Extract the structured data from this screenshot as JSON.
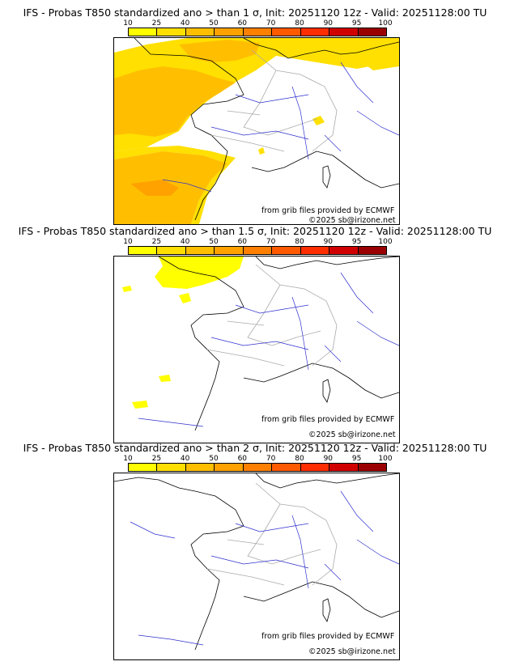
{
  "colorbar": {
    "ticks": [
      "10",
      "25",
      "40",
      "50",
      "60",
      "70",
      "80",
      "90",
      "95",
      "100"
    ],
    "colors": [
      "#ffff00",
      "#ffdf00",
      "#ffbf00",
      "#ffa200",
      "#ff8000",
      "#ff5a00",
      "#ff2d00",
      "#d00000",
      "#9a0000",
      "#5a0000"
    ]
  },
  "panels": [
    {
      "title": "IFS - Probas T850  standardized ano > than 1 σ, Init: 20251120 12z - Valid: 20251128:00 TU"
    },
    {
      "title": "IFS - Probas T850  standardized ano > than 1.5 σ, Init: 20251120 12z - Valid: 20251128:00 TU"
    },
    {
      "title": "IFS - Probas T850  standardized ano > than 2 σ, Init: 20251120 12z - Valid: 20251128:00 TU"
    }
  ],
  "credits": {
    "source": "from grib files provided by ECMWF",
    "copyright": "©2025 sb@irizone.net"
  }
}
